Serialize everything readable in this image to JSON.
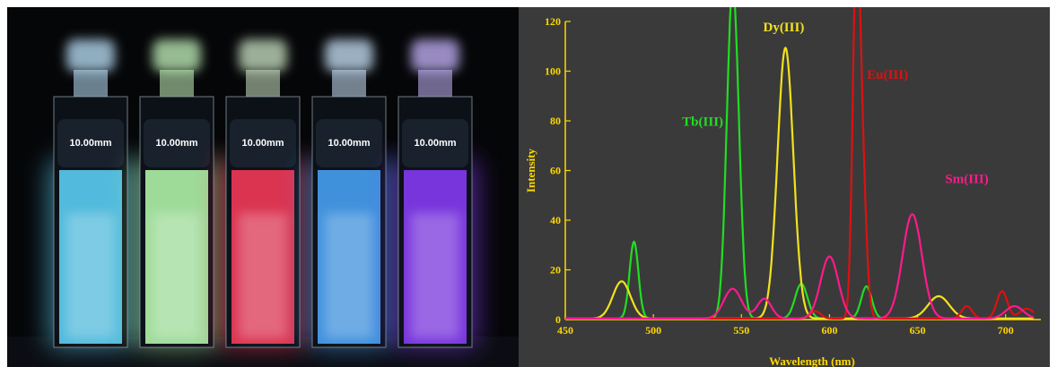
{
  "photo": {
    "cuvettes": [
      {
        "label": "10.00mm",
        "glow": "#5fd8ff",
        "cap": "#bfe6ff"
      },
      {
        "label": "10.00mm",
        "glow": "#b8ffb0",
        "cap": "#c8f8c0"
      },
      {
        "label": "10.00mm",
        "glow": "#ff3b5c",
        "cap": "#cfe8c8"
      },
      {
        "label": "10.00mm",
        "glow": "#4aa8ff",
        "cap": "#cde8ff"
      },
      {
        "label": "10.00mm",
        "glow": "#8c3cff",
        "cap": "#c9b8ff"
      }
    ]
  },
  "chart_data": {
    "type": "line",
    "xlabel": "Wavelength (nm)",
    "ylabel": "Intensity",
    "xlim": [
      450,
      720
    ],
    "ylim": [
      0,
      120
    ],
    "xticks": [
      450,
      500,
      550,
      600,
      650,
      700
    ],
    "yticks": [
      0,
      20,
      40,
      60,
      80,
      100,
      120
    ],
    "grid": false,
    "background": "#3a3a3a",
    "axis_color": "#ffd700",
    "series": [
      {
        "name": "Tb(III)",
        "color": "#22dd22",
        "peaks": [
          [
            489,
            31,
            2.5
          ],
          [
            544,
            91,
            3
          ],
          [
            547,
            60,
            3
          ],
          [
            584,
            14,
            3.5
          ],
          [
            621,
            13,
            3
          ]
        ]
      },
      {
        "name": "Dy(III)",
        "color": "#f2e21c",
        "peaks": [
          [
            482,
            15,
            5
          ],
          [
            575,
            109,
            4.5
          ],
          [
            662,
            9,
            6
          ]
        ]
      },
      {
        "name": "Eu(III)",
        "color": "#dd1111",
        "peaks": [
          [
            592,
            3,
            3
          ],
          [
            615,
            116,
            2
          ],
          [
            618,
            70,
            2.5
          ],
          [
            678,
            5,
            3
          ],
          [
            698,
            11,
            3
          ],
          [
            712,
            4,
            4
          ]
        ]
      },
      {
        "name": "Sm(III)",
        "color": "#ff1a8c",
        "peaks": [
          [
            545,
            12,
            5
          ],
          [
            563,
            8,
            4
          ],
          [
            600,
            25,
            5
          ],
          [
            647,
            42,
            5.5
          ],
          [
            705,
            5,
            5
          ]
        ]
      }
    ],
    "annotations": [
      {
        "text": "Dy(III)",
        "x": 574,
        "y": 116,
        "color": "#f2e21c"
      },
      {
        "text": "Tb(III)",
        "x": 528,
        "y": 78,
        "color": "#22dd22"
      },
      {
        "text": "Eu(III)",
        "x": 633,
        "y": 97,
        "color": "#dd1111"
      },
      {
        "text": "Sm(III)",
        "x": 678,
        "y": 55,
        "color": "#ff1a8c"
      }
    ]
  }
}
